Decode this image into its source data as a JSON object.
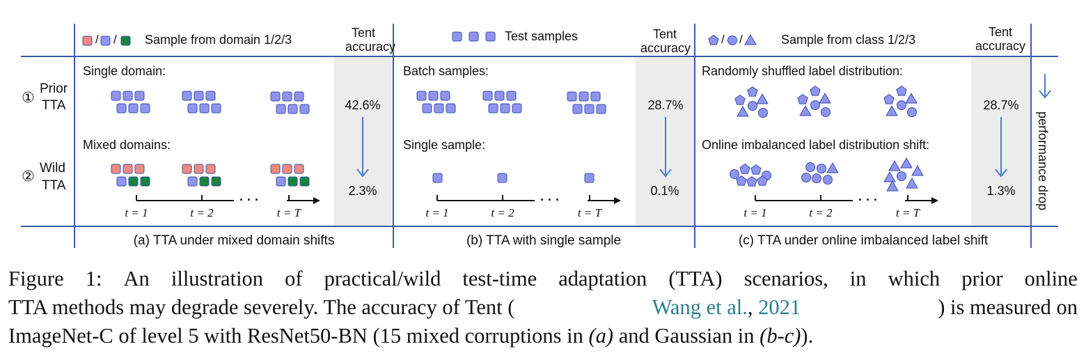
{
  "panels": [
    {
      "legend_text": "Sample from domain 1/2/3",
      "acc_header": [
        "Tent",
        "accuracy"
      ],
      "top_label": "Single domain:",
      "bottom_label": "Mixed domains:",
      "acc_top": "42.6%",
      "acc_bottom": "2.3%",
      "ticks": [
        "t = 1",
        "t = 2",
        "t = T"
      ],
      "caption": "(a) TTA under mixed domain shifts"
    },
    {
      "legend_text": "Test samples",
      "acc_header": [
        "Tent",
        "accuracy"
      ],
      "top_label": "Batch samples:",
      "bottom_label": "Single sample:",
      "acc_top": "28.7%",
      "acc_bottom": "0.1%",
      "ticks": [
        "t = 1",
        "t = 2",
        "t = T"
      ],
      "caption": "(b) TTA with single sample"
    },
    {
      "legend_text": "Sample from class 1/2/3",
      "acc_header": [
        "Tent",
        "accuracy"
      ],
      "top_label": "Randomly shuffled label distribution:",
      "bottom_label": "Online imbalanced label distribution shift:",
      "acc_top": "28.7%",
      "acc_bottom": "1.3%",
      "ticks": [
        "t = 1",
        "t = 2",
        "t = T"
      ],
      "caption": "(c) TTA under online imbalanced label shift"
    }
  ],
  "legend_separator": "/",
  "ellipsis": "· · ·",
  "rows": [
    {
      "circled": "①",
      "line1": "Prior",
      "line2": "TTA"
    },
    {
      "circled": "②",
      "line1": "Wild",
      "line2": "TTA"
    }
  ],
  "side_label": "performance drop",
  "figure_caption": {
    "line1_words": [
      "Figure",
      "1:",
      "An",
      "illustration",
      "of",
      "practical/wild",
      "test-time",
      "adaptation",
      "(TTA)",
      "scenarios,",
      "in",
      "which",
      "prior",
      "online"
    ],
    "line2_pre": "TTA methods may degrade severely.  The accuracy of Tent (",
    "line2_cite_author": "Wang et al.",
    "line2_comma": ", ",
    "line2_cite_year": "2021",
    "line2_post": ") is measured on",
    "line3_pre": "ImageNet-C of level 5 with ResNet50-BN (15 mixed corruptions in ",
    "line3_a": "(a)",
    "line3_mid": " and Gaussian in ",
    "line3_bc": "(b-c)",
    "line3_post": ")."
  },
  "colors": {
    "blue_line": "#3a5ca8",
    "sample_blue": "#8f94ec",
    "sample_red": "#ee8a80",
    "sample_green": "#17843a",
    "shape_edge": "#3d4fb0",
    "gray_band": "#ececec",
    "arrow": "#4a7fd0",
    "cite": "#2a7f8a"
  }
}
